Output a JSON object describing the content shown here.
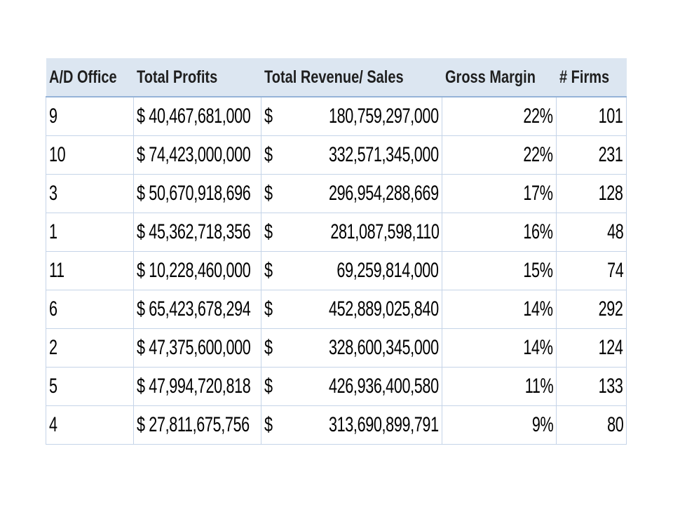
{
  "table": {
    "header": [
      "A/D Office",
      "Total Profits",
      "Total Revenue/ Sales",
      "Gross Margin",
      "# Firms"
    ],
    "rows": [
      [
        "9",
        "$ 40,467,681,000",
        {
          "currency": "$",
          "amount": "180,759,297,000"
        },
        "22%",
        "101"
      ],
      [
        "10",
        "$ 74,423,000,000",
        {
          "currency": "$",
          "amount": "332,571,345,000"
        },
        "22%",
        "231"
      ],
      [
        "3",
        "$ 50,670,918,696",
        {
          "currency": "$",
          "amount": "296,954,288,669"
        },
        "17%",
        "128"
      ],
      [
        "1",
        "$ 45,362,718,356",
        {
          "currency": "$",
          "amount": "281,087,598,110"
        },
        "16%",
        "48"
      ],
      [
        "11",
        "$ 10,228,460,000",
        {
          "currency": "$",
          "amount": "69,259,814,000"
        },
        "15%",
        "74"
      ],
      [
        "6",
        "$ 65,423,678,294",
        {
          "currency": "$",
          "amount": "452,889,025,840"
        },
        "14%",
        "292"
      ],
      [
        "2",
        "$ 47,375,600,000",
        {
          "currency": "$",
          "amount": "328,600,345,000"
        },
        "14%",
        "124"
      ],
      [
        "5",
        "$ 47,994,720,818",
        {
          "currency": "$",
          "amount": "426,936,400,580"
        },
        "11%",
        "133"
      ],
      [
        "4",
        "$ 27,811,675,756",
        {
          "currency": "$",
          "amount": "313,690,899,791"
        },
        "9%",
        "80"
      ]
    ]
  }
}
